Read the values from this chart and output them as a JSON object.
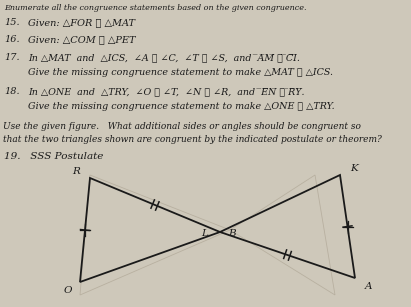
{
  "bg_color": "#cec8ba",
  "text_color": "#1a1a1a",
  "title_line1": "Enumerate all the congruence statements based on the given congruence.",
  "item15": "Given: △FOR ≅ △MAT",
  "item16": "Given: △COM ≅ △PET",
  "item17_line1": "In △MAT  and  △ICS,  ∠A ≅ ∠C,  ∠T ≅ ∠S,  and  ̅A̅M̅ ≅ ̅C̅I̅.",
  "item17_line2": "Give the missing congruence statement to make △MAT ≅ △ICS.",
  "item18_line1": "In △ONE  and  △TRY,  ∠O ≅ ∠T,  ∠N ≅ ∠R,  and  ̅E̅N̅ ≅ ̅R̅Y̅.",
  "item18_line2": "Give the missing congruence statement to make △ONE ≅ △TRY.",
  "italic_para_line1": "Use the given figure.   What additional sides or angles should be congruent so",
  "italic_para_line2": "that the two triangles shown are congruent by the indicated postulate or theorem?",
  "item19": "19.   SSS Postulate"
}
